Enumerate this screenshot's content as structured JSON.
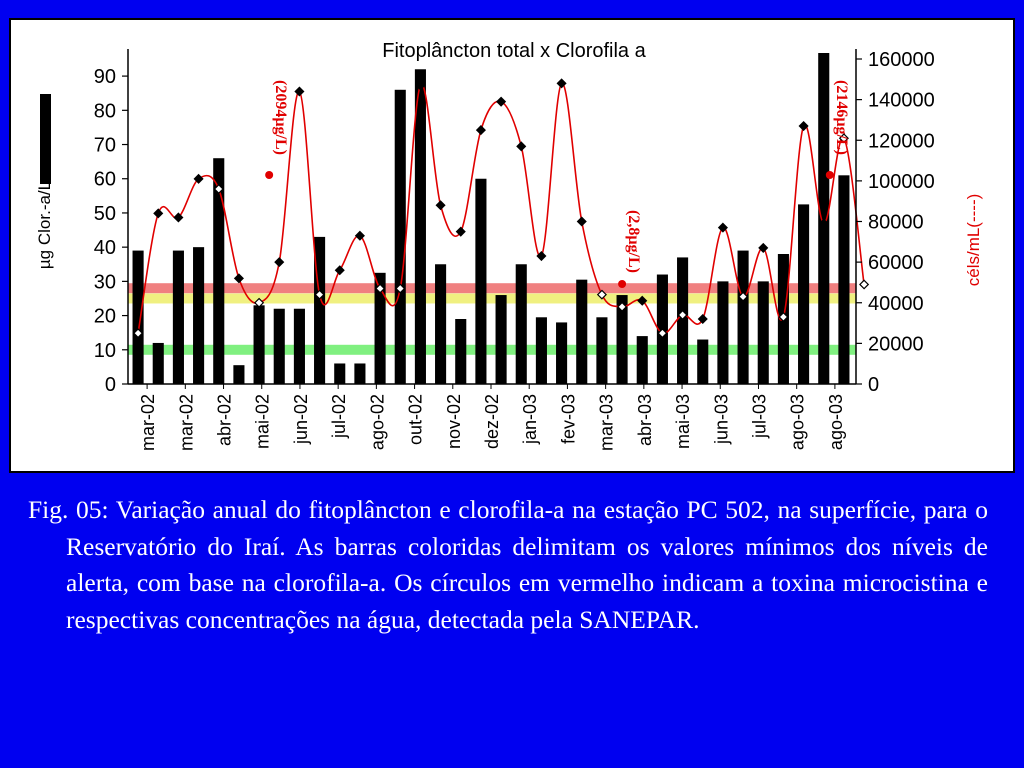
{
  "chart_data": {
    "type": "bar+line",
    "title": "Fitoplâncton total x Clorofila a",
    "ylabel_left": "µg Clor.-a/L",
    "ylabel_right": "céls/mL(----)",
    "ylim_left": [
      0,
      95
    ],
    "ylim_right": [
      0,
      160000
    ],
    "yticks_left": [
      0,
      10,
      20,
      30,
      40,
      50,
      60,
      70,
      80,
      90
    ],
    "yticks_right": [
      0,
      20000,
      40000,
      60000,
      80000,
      100000,
      120000,
      140000,
      160000
    ],
    "category_labels": [
      "mar-02",
      "mar-02",
      "abr-02",
      "mai-02",
      "jun-02",
      "jul-02",
      "ago-02",
      "out-02",
      "nov-02",
      "dez-02",
      "jan-03",
      "fev-03",
      "mar-03",
      "abr-03",
      "mai-03",
      "jun-03",
      "jul-03",
      "ago-03",
      "ago-03"
    ],
    "chlorophyll_bars": [
      39,
      12,
      39,
      40,
      66,
      5.5,
      23,
      22,
      22,
      43,
      6,
      6,
      32.5,
      86,
      92,
      35,
      19,
      60,
      26,
      35,
      19.5,
      18,
      30.5,
      19.5,
      26,
      14,
      32,
      37,
      13,
      30,
      39,
      30,
      38,
      52.5,
      97,
      61
    ],
    "phytoplankton_points": [
      25000,
      84000,
      82000,
      101000,
      96000,
      52000,
      40000,
      60000,
      144000,
      44000,
      56000,
      73000,
      47000,
      47000,
      147000,
      88000,
      75000,
      125000,
      139000,
      117000,
      63000,
      148000,
      80000,
      44000,
      38000,
      41000,
      25000,
      34000,
      32000,
      77000,
      43000,
      67000,
      33000,
      127000,
      79000,
      121000,
      49000
    ],
    "phytoplankton_open_marker_indices": [
      0,
      4,
      6,
      9,
      12,
      13,
      23,
      24,
      26,
      27,
      30,
      32,
      35,
      36
    ],
    "alert_bands": [
      {
        "value": 28,
        "color": "#f08080"
      },
      {
        "value": 25,
        "color": "#f0f080"
      },
      {
        "value": 10,
        "color": "#80f080"
      }
    ],
    "toxin_annotations": [
      {
        "label": "(2094µg/L)",
        "index": 6.5
      },
      {
        "label": "(2,8µg/L)",
        "index": 24
      },
      {
        "label": "(2146µg/L)",
        "index": 34.3
      }
    ],
    "colors": {
      "bars": "#000000",
      "line": "#e00000",
      "toxin": "#e00000"
    }
  },
  "caption": "Fig. 05: Variação anual do fitoplâncton e clorofila-a na estação PC 502, na superfície, para o Reservatório do Iraí. As barras coloridas delimitam os valores mínimos dos níveis de alerta, com base na clorofila-a. Os círculos em vermelho indicam a toxina microcistina e respectivas concentrações na água, detectada pela SANEPAR."
}
